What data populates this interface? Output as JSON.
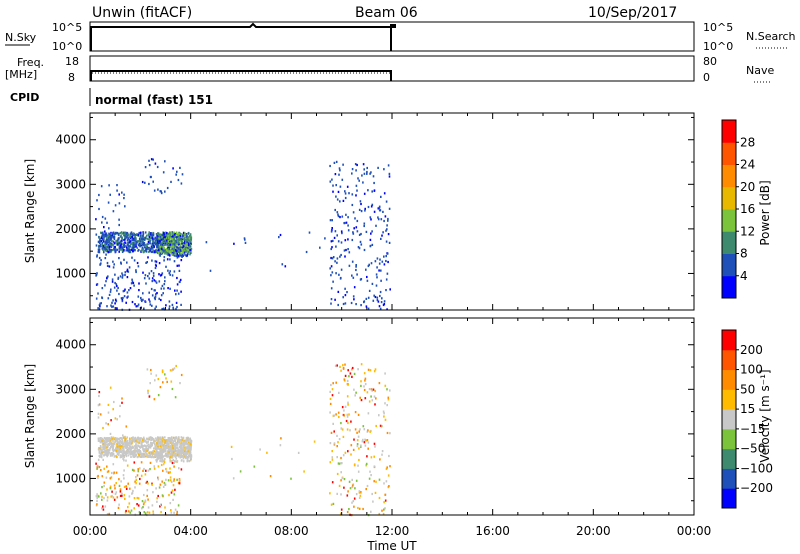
{
  "header": {
    "station": "Unwin (fitACF)",
    "beam": "Beam 06",
    "date": "10/Sep/2017"
  },
  "top_panels": {
    "nsky_label": "N.Sky",
    "nsky_ticks": [
      "10^5",
      "10^0"
    ],
    "nsearch_label": "N.Search",
    "nsearch_ticks": [
      "10^5",
      "10^0"
    ],
    "freq_label_1": "Freq.",
    "freq_label_2": "[MHz]",
    "freq_ticks": [
      "18",
      "8"
    ],
    "nave_label": "Nave",
    "nave_ticks": [
      "80",
      "0"
    ],
    "cpid_label": "CPID",
    "cpid_text": "normal (fast) 151"
  },
  "axes": {
    "x_label": "Time UT",
    "x_ticks": [
      "00:00",
      "04:00",
      "08:00",
      "12:00",
      "16:00",
      "20:00",
      "00:00"
    ],
    "y_label": "Slant Range [km]",
    "y_ticks": [
      "4000",
      "3000",
      "2000",
      "1000"
    ]
  },
  "colorbars": {
    "power_label": "Power [dB]",
    "power_ticks": [
      "28",
      "24",
      "20",
      "16",
      "12",
      "8",
      "4"
    ],
    "power_colors": [
      "#0000ff",
      "#1f4fb8",
      "#3d8a6e",
      "#7bc33a",
      "#e8b800",
      "#ff8c00",
      "#ff5500",
      "#ff0000"
    ],
    "velocity_label": "Velocity [m s⁻¹]",
    "velocity_ticks": [
      "200",
      "100",
      "50",
      "15",
      "−15",
      "−50",
      "−100",
      "−200"
    ],
    "velocity_colors": [
      "#ff0000",
      "#ff5500",
      "#ff8c00",
      "#ffbb00",
      "#c8c8c8",
      "#7bc33a",
      "#3d8a6e",
      "#1f4fb8",
      "#0000ff"
    ]
  },
  "chart_data": [
    {
      "type": "heatmap",
      "title": "Power",
      "xlabel": "Time UT",
      "ylabel": "Slant Range [km]",
      "xlim": [
        0,
        24
      ],
      "ylim": [
        180,
        4600
      ],
      "colorbar": "Power [dB]",
      "clim": [
        0,
        32
      ],
      "regions": [
        {
          "t": [
            0.3,
            4.0
          ],
          "r": [
            1500,
            1950
          ],
          "value": 12
        },
        {
          "t": [
            2.5,
            4.0
          ],
          "r": [
            1400,
            1900
          ],
          "value": 16
        },
        {
          "t": [
            0.2,
            3.5
          ],
          "r": [
            200,
            900
          ],
          "value": 6
        },
        {
          "t": [
            9.5,
            11.8
          ],
          "r": [
            200,
            3500
          ],
          "value": 6
        }
      ]
    },
    {
      "type": "heatmap",
      "title": "Velocity",
      "xlabel": "Time UT",
      "ylabel": "Slant Range [km]",
      "xlim": [
        0,
        24
      ],
      "ylim": [
        180,
        4600
      ],
      "colorbar": "Velocity [m s⁻¹]",
      "clim": [
        -200,
        200
      ],
      "regions": [
        {
          "t": [
            0.3,
            4.0
          ],
          "r": [
            1400,
            1950
          ],
          "value": 0
        },
        {
          "t": [
            0.2,
            3.5
          ],
          "r": [
            200,
            900
          ],
          "value": 0
        },
        {
          "t": [
            9.5,
            11.8
          ],
          "r": [
            200,
            3500
          ],
          "value": -40
        }
      ]
    },
    {
      "type": "line",
      "title": "N.Sky",
      "x": [
        0,
        0.01,
        6.3,
        6.4,
        11.9,
        11.95
      ],
      "y": [
        0,
        0.9,
        0.95,
        0.85,
        0.85,
        0
      ]
    },
    {
      "type": "line",
      "title": "Freq.",
      "x": [
        0,
        0.01,
        11.9,
        11.95
      ],
      "y": [
        8,
        11,
        11,
        8
      ]
    }
  ]
}
